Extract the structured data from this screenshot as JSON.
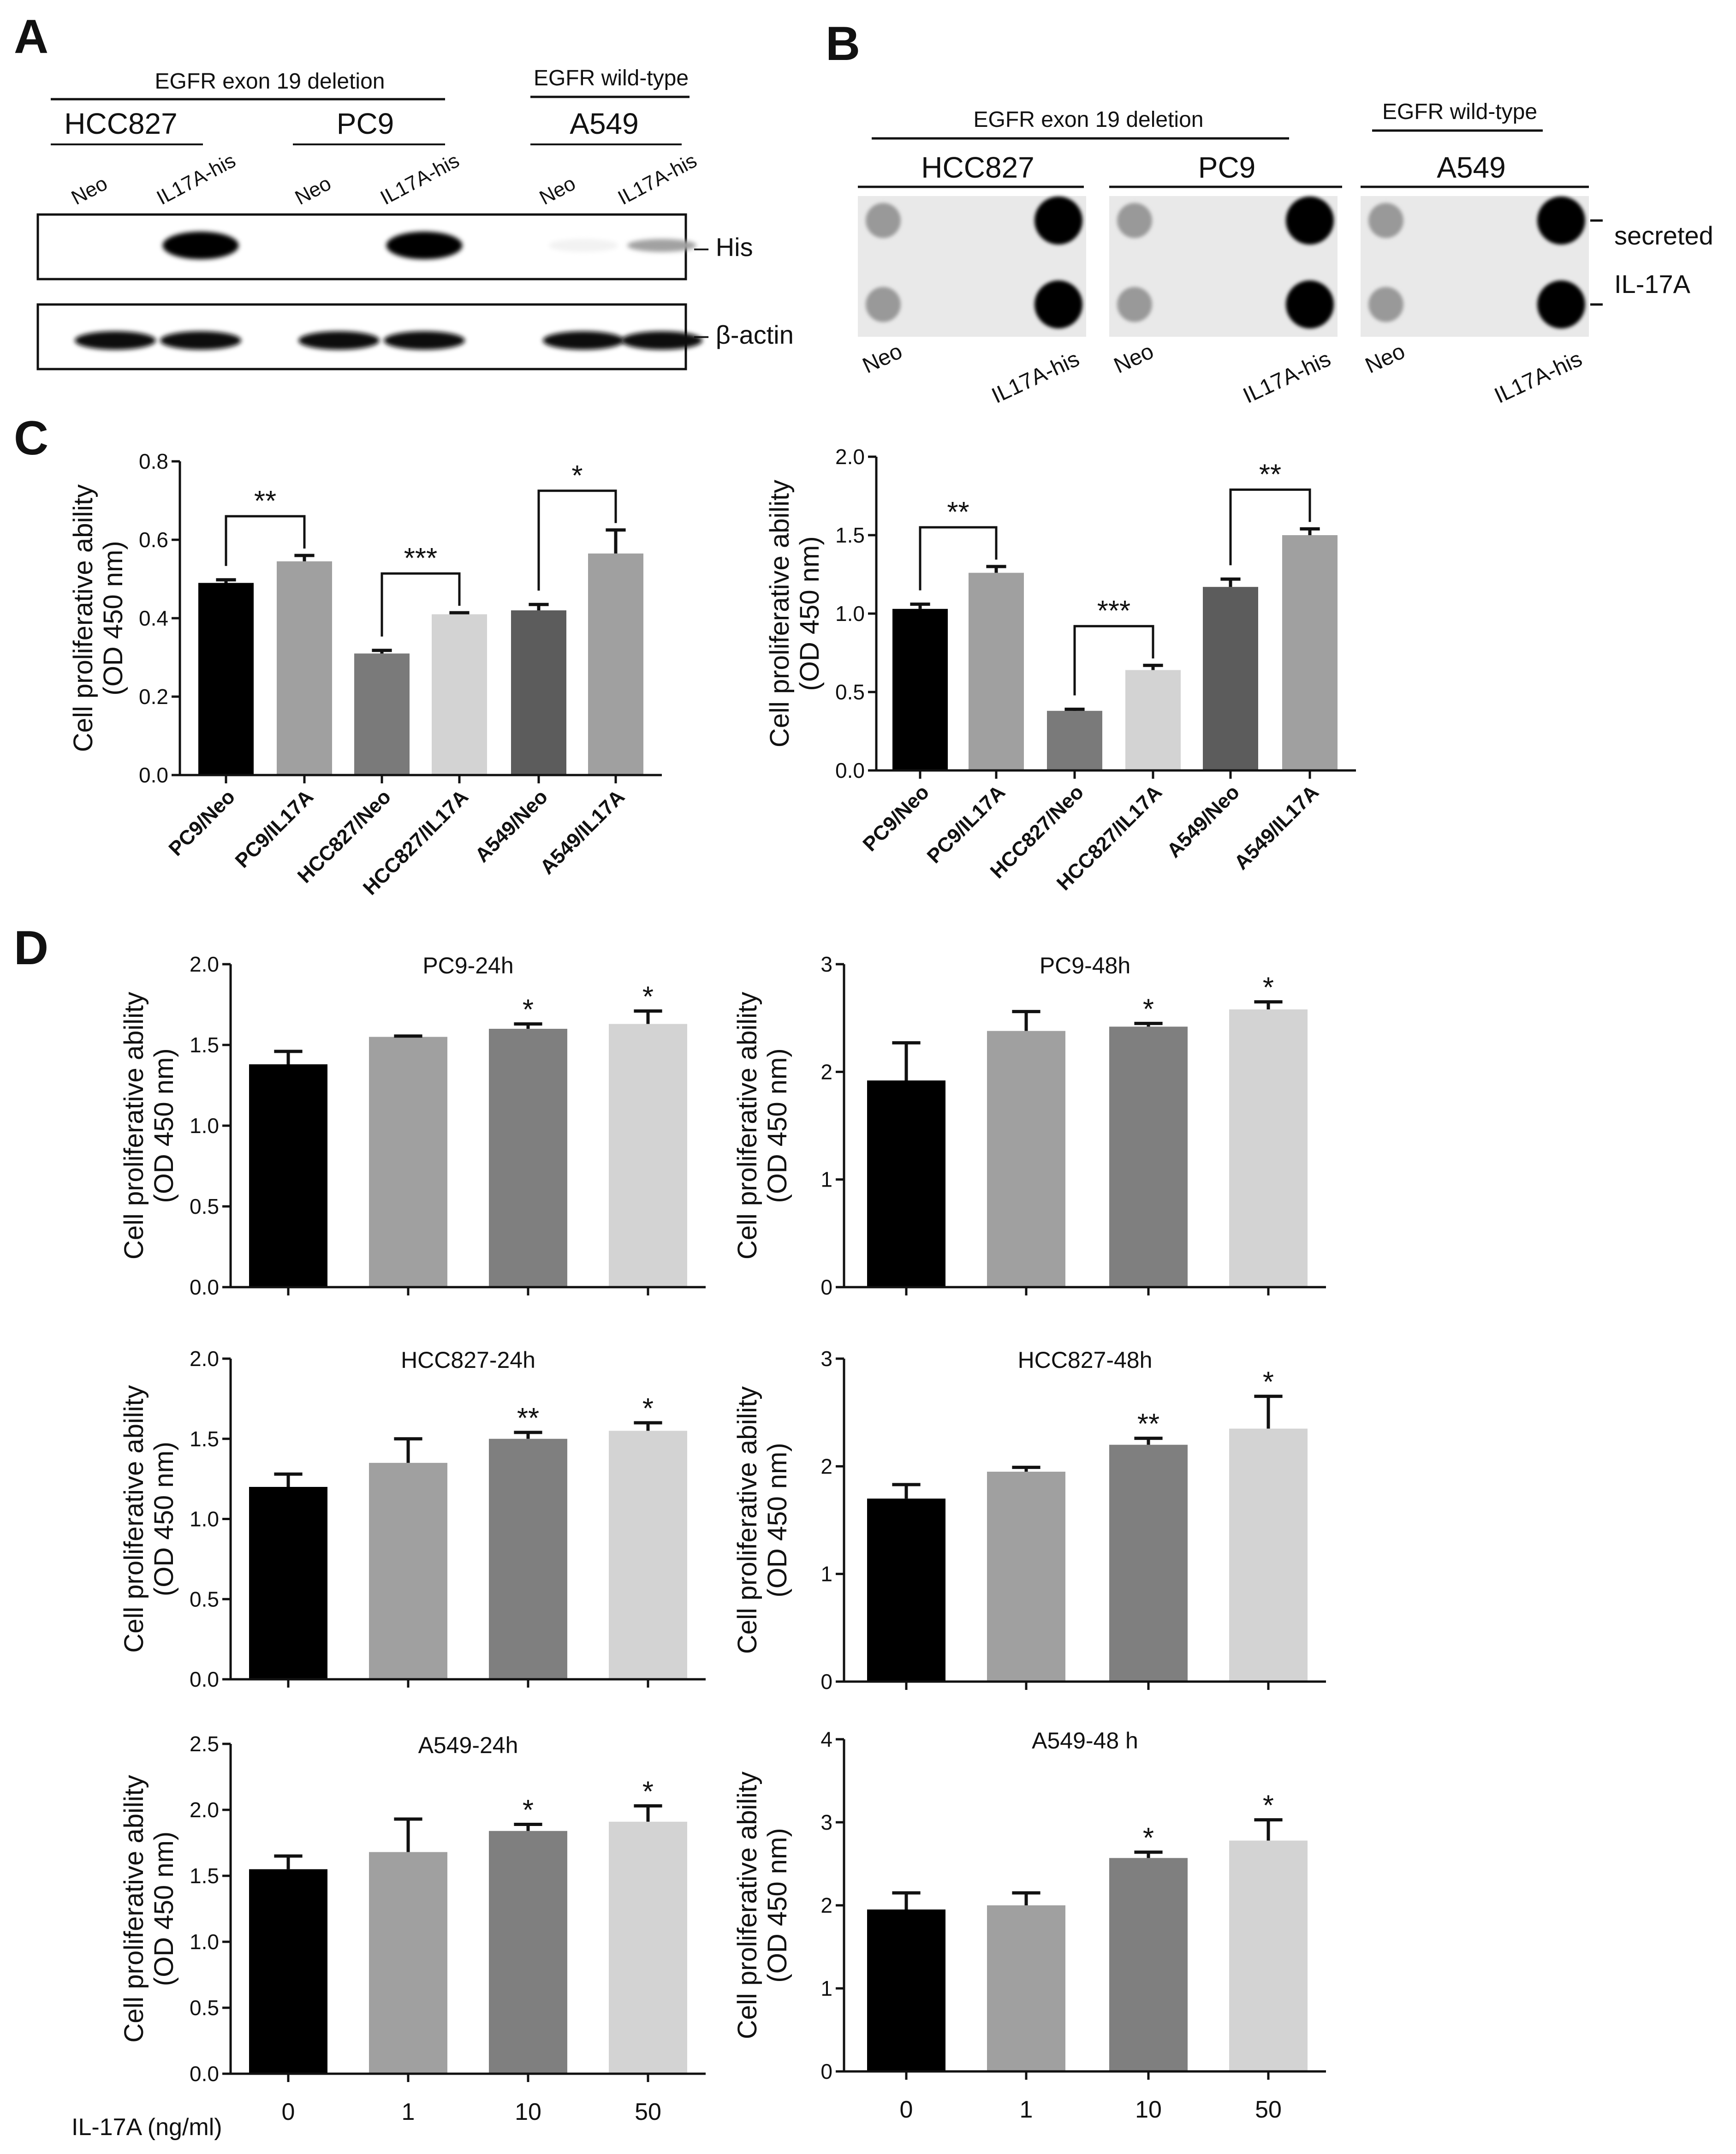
{
  "panels": {
    "a": "A",
    "b": "B",
    "c": "C",
    "d": "D"
  },
  "panel_a": {
    "group_headers": {
      "mut": "EGFR exon 19 deletion",
      "wt": "EGFR wild-type"
    },
    "cell_lines": [
      "HCC827",
      "PC9",
      "A549"
    ],
    "lanes": [
      "Neo",
      "IL17A-his",
      "Neo",
      "IL17A-his",
      "Neo",
      "IL17A-his"
    ],
    "markers": {
      "his": "– His",
      "actin": "– β-actin"
    },
    "his_band_intensity": [
      0,
      1.0,
      0,
      1.0,
      0.05,
      0.35
    ],
    "actin_band_intensity": [
      1,
      1,
      1,
      1,
      1,
      1
    ]
  },
  "panel_b": {
    "group_headers": {
      "mut": "EGFR exon 19 deletion",
      "wt": "EGFR wild-type"
    },
    "cell_lines": [
      "HCC827",
      "PC9",
      "A549"
    ],
    "lanes": [
      "Neo",
      "IL17A-his",
      "Neo",
      "IL17A-his",
      "Neo",
      "IL17A-his"
    ],
    "labels": {
      "secreted": "secreted",
      "il17a": "IL-17A"
    },
    "dot_intensity": {
      "neo": 0.35,
      "il17a": 1.0
    }
  },
  "chart_data": [
    {
      "id": "C1",
      "type": "bar",
      "categories": [
        "PC9/Neo",
        "PC9/IL17A",
        "HCC827/Neo",
        "HCC827/IL17A",
        "A549/Neo",
        "A549/IL17A"
      ],
      "values": [
        0.49,
        0.545,
        0.31,
        0.41,
        0.42,
        0.565
      ],
      "errors": [
        0.008,
        0.015,
        0.008,
        0.004,
        0.015,
        0.06
      ],
      "colors": [
        "#000000",
        "#a0a0a0",
        "#7a7a7a",
        "#d3d3d3",
        "#5c5c5c",
        "#a0a0a0"
      ],
      "ylabel": [
        "Cell proliferative ability",
        "(OD 450 nm)"
      ],
      "yticks": [
        "0.0",
        "0.2",
        "0.4",
        "0.6",
        "0.8"
      ],
      "ylim": [
        0,
        0.8
      ],
      "brackets": [
        {
          "from": 0,
          "to": 1,
          "label": "**"
        },
        {
          "from": 2,
          "to": 3,
          "label": "***"
        },
        {
          "from": 4,
          "to": 5,
          "label": "*"
        }
      ]
    },
    {
      "id": "C2",
      "type": "bar",
      "categories": [
        "PC9/Neo",
        "PC9/IL17A",
        "HCC827/Neo",
        "HCC827/IL17A",
        "A549/Neo",
        "A549/IL17A"
      ],
      "values": [
        1.03,
        1.26,
        0.38,
        0.64,
        1.17,
        1.5
      ],
      "errors": [
        0.03,
        0.04,
        0.01,
        0.03,
        0.05,
        0.04
      ],
      "colors": [
        "#000000",
        "#a0a0a0",
        "#7a7a7a",
        "#d3d3d3",
        "#5c5c5c",
        "#a0a0a0"
      ],
      "ylabel": [
        "Cell proliferative ability",
        "(OD 450 nm)"
      ],
      "yticks": [
        "0.0",
        "0.5",
        "1.0",
        "1.5",
        "2.0"
      ],
      "ylim": [
        0,
        2.0
      ],
      "brackets": [
        {
          "from": 0,
          "to": 1,
          "label": "**"
        },
        {
          "from": 2,
          "to": 3,
          "label": "***"
        },
        {
          "from": 4,
          "to": 5,
          "label": "**"
        }
      ]
    },
    {
      "id": "D1",
      "type": "bar",
      "title": "PC9-24h",
      "categories": [
        "0",
        "1",
        "10",
        "50"
      ],
      "values": [
        1.38,
        1.55,
        1.6,
        1.63
      ],
      "errors": [
        0.08,
        0.005,
        0.03,
        0.08
      ],
      "sig": [
        "",
        "",
        "*",
        "*"
      ],
      "colors": [
        "#000000",
        "#a0a0a0",
        "#7f7f7f",
        "#d3d3d3"
      ],
      "ylabel": [
        "Cell proliferative ability",
        "(OD 450 nm)"
      ],
      "yticks": [
        "0.0",
        "0.5",
        "1.0",
        "1.5",
        "2.0"
      ],
      "ylim": [
        0,
        2.0
      ]
    },
    {
      "id": "D2",
      "type": "bar",
      "title": "PC9-48h",
      "categories": [
        "0",
        "1",
        "10",
        "50"
      ],
      "values": [
        1.92,
        2.38,
        2.42,
        2.58
      ],
      "errors": [
        0.35,
        0.18,
        0.03,
        0.07
      ],
      "sig": [
        "",
        "",
        "*",
        "*"
      ],
      "colors": [
        "#000000",
        "#a0a0a0",
        "#7f7f7f",
        "#d3d3d3"
      ],
      "ylabel": [
        "Cell proliferative ability",
        "(OD 450 nm)"
      ],
      "yticks": [
        "0",
        "1",
        "2",
        "3"
      ],
      "ylim": [
        0,
        3
      ]
    },
    {
      "id": "D3",
      "type": "bar",
      "title": "HCC827-24h",
      "categories": [
        "0",
        "1",
        "10",
        "50"
      ],
      "values": [
        1.2,
        1.35,
        1.5,
        1.55
      ],
      "errors": [
        0.08,
        0.15,
        0.04,
        0.05
      ],
      "sig": [
        "",
        "",
        "**",
        "*"
      ],
      "colors": [
        "#000000",
        "#a0a0a0",
        "#7f7f7f",
        "#d3d3d3"
      ],
      "ylabel": [
        "Cell proliferative ability",
        "(OD 450 nm)"
      ],
      "yticks": [
        "0.0",
        "0.5",
        "1.0",
        "1.5",
        "2.0"
      ],
      "ylim": [
        0,
        2.0
      ]
    },
    {
      "id": "D4",
      "type": "bar",
      "title": "HCC827-48h",
      "categories": [
        "0",
        "1",
        "10",
        "50"
      ],
      "values": [
        1.7,
        1.95,
        2.2,
        2.35
      ],
      "errors": [
        0.13,
        0.04,
        0.06,
        0.3
      ],
      "sig": [
        "",
        "",
        "**",
        "*"
      ],
      "colors": [
        "#000000",
        "#a0a0a0",
        "#7f7f7f",
        "#d3d3d3"
      ],
      "ylabel": [
        "Cell proliferative ability",
        "(OD 450 nm)"
      ],
      "yticks": [
        "0",
        "1",
        "2",
        "3"
      ],
      "ylim": [
        0,
        3
      ]
    },
    {
      "id": "D5",
      "type": "bar",
      "title": "A549-24h",
      "categories": [
        "0",
        "1",
        "10",
        "50"
      ],
      "values": [
        1.55,
        1.68,
        1.84,
        1.91
      ],
      "errors": [
        0.1,
        0.25,
        0.05,
        0.12
      ],
      "sig": [
        "",
        "",
        "*",
        "*"
      ],
      "colors": [
        "#000000",
        "#a0a0a0",
        "#7f7f7f",
        "#d3d3d3"
      ],
      "ylabel": [
        "Cell proliferative ability",
        "(OD 450 nm)"
      ],
      "yticks": [
        "0.0",
        "0.5",
        "1.0",
        "1.5",
        "2.0",
        "2.5"
      ],
      "ylim": [
        0,
        2.5
      ]
    },
    {
      "id": "D6",
      "type": "bar",
      "title": "A549-48 h",
      "categories": [
        "0",
        "1",
        "10",
        "50"
      ],
      "values": [
        1.95,
        2.0,
        2.57,
        2.78
      ],
      "errors": [
        0.2,
        0.15,
        0.07,
        0.25
      ],
      "sig": [
        "",
        "",
        "*",
        "*"
      ],
      "colors": [
        "#000000",
        "#a0a0a0",
        "#7f7f7f",
        "#d3d3d3"
      ],
      "ylabel": [
        "Cell proliferative ability",
        "(OD 450 nm)"
      ],
      "yticks": [
        "0",
        "1",
        "2",
        "3",
        "4"
      ],
      "ylim": [
        0,
        4
      ]
    }
  ],
  "x_label_d": "IL-17A (ng/ml)"
}
